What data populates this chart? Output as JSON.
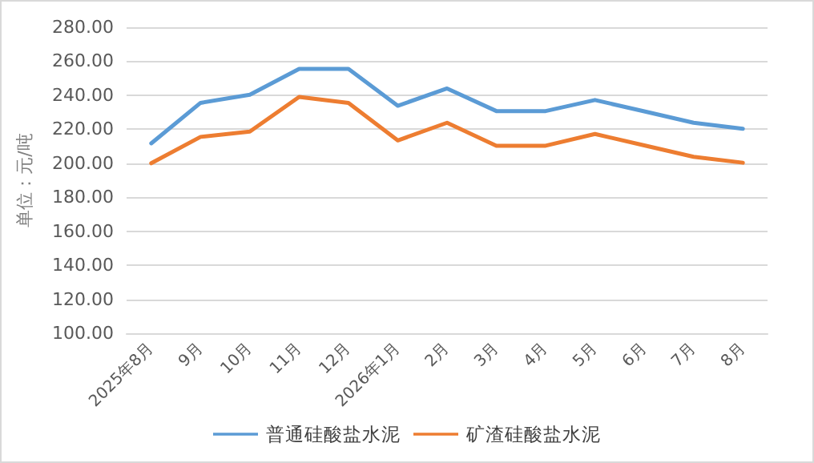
{
  "chart_data": {
    "type": "line",
    "ylabel": "单位：元/吨",
    "categories": [
      "2025年8月",
      "9月",
      "10月",
      "11月",
      "12月",
      "2026年1月",
      "2月",
      "3月",
      "4月",
      "5月",
      "6月",
      "7月",
      "8月"
    ],
    "series": [
      {
        "name": "普通硅酸盐水泥",
        "color": "#5b9bd5",
        "values": [
          211.7,
          235.5,
          240.3,
          255.5,
          255.5,
          233.8,
          244,
          230.7,
          230.7,
          237.2,
          230.5,
          223.8,
          220.3
        ]
      },
      {
        "name": "矿渣硅酸盐水泥",
        "color": "#ed7d31",
        "values": [
          200,
          215.5,
          218.6,
          239,
          235.5,
          213.4,
          223.8,
          210.3,
          210.3,
          217.2,
          210.5,
          203.8,
          200.3
        ]
      }
    ],
    "ylim": [
      100,
      280
    ],
    "yticks": [
      {
        "value": 100,
        "label": "100.00"
      },
      {
        "value": 120,
        "label": "120.00"
      },
      {
        "value": 140,
        "label": "140.00"
      },
      {
        "value": 160,
        "label": "160.00"
      },
      {
        "value": 180,
        "label": "180.00"
      },
      {
        "value": 200,
        "label": "200.00"
      },
      {
        "value": 220,
        "label": "220.00"
      },
      {
        "value": 240,
        "label": "240.00"
      },
      {
        "value": 260,
        "label": "260.00"
      },
      {
        "value": 280,
        "label": "280.00"
      }
    ],
    "grid": "y",
    "legend": "bottom",
    "marker": "none",
    "line_style": "solid"
  }
}
